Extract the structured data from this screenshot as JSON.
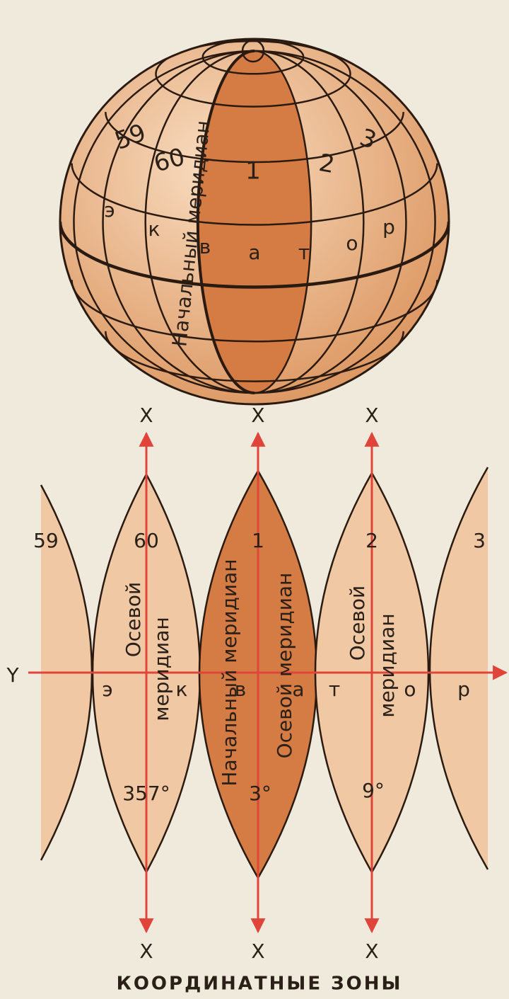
{
  "globe": {
    "zones": [
      "59",
      "60",
      "1",
      "2",
      "3"
    ],
    "prime_meridian": "Начальный меридиан",
    "equator_letters": [
      "э",
      "к",
      "в",
      "а",
      "т",
      "о",
      "р"
    ]
  },
  "zones_diagram": {
    "x_labels_top": [
      "X",
      "X",
      "X"
    ],
    "x_labels_bottom": [
      "X",
      "X",
      "X"
    ],
    "y_label": "Y",
    "zones": [
      "59",
      "60",
      "1",
      "2",
      "3"
    ],
    "axial_meridian_60": [
      "Осевой",
      "меридиан"
    ],
    "axial_meridian_1": "Осевой меридиан",
    "axial_meridian_2": [
      "Осевой",
      "меридиан"
    ],
    "prime_meridian": "Начальный меридиан",
    "equator_letters": [
      "э",
      "к",
      "в",
      "а",
      "т",
      "о",
      "р"
    ],
    "longitudes": [
      "357°",
      "3°",
      "9°"
    ]
  },
  "caption": "КООРДИНАТНЫЕ ЗОНЫ"
}
